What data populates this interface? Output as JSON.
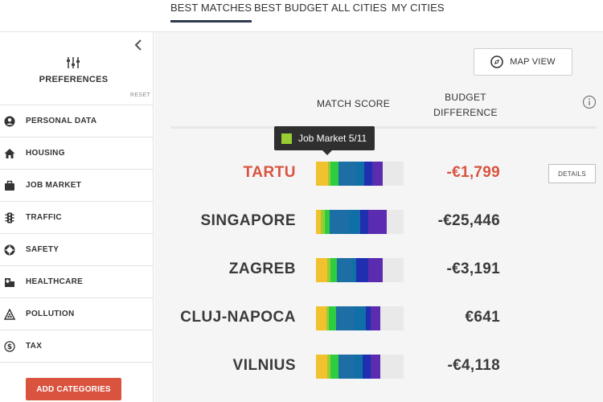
{
  "tabs": [
    {
      "label": "BEST MATCHES",
      "active": true
    },
    {
      "label": "BEST BUDGET",
      "active": false
    },
    {
      "label": "ALL CITIES",
      "active": false
    },
    {
      "label": "MY CITIES",
      "active": false
    }
  ],
  "sidebar": {
    "title": "PREFERENCES",
    "reset_label": "RESET",
    "categories": [
      {
        "label": "PERSONAL DATA",
        "icon": "person-icon"
      },
      {
        "label": "HOUSING",
        "icon": "house-icon"
      },
      {
        "label": "JOB MARKET",
        "icon": "briefcase-icon"
      },
      {
        "label": "TRAFFIC",
        "icon": "traffic-light-icon"
      },
      {
        "label": "SAFETY",
        "icon": "lifebuoy-icon"
      },
      {
        "label": "HEALTHCARE",
        "icon": "hospital-icon"
      },
      {
        "label": "POLLUTION",
        "icon": "pollution-icon"
      },
      {
        "label": "TAX",
        "icon": "dollar-coin-icon"
      }
    ],
    "add_button_label": "ADD CATEGORIES"
  },
  "main": {
    "map_button_label": "MAP VIEW",
    "col_match": "MATCH SCORE",
    "col_budget_line1": "BUDGET",
    "col_budget_line2": "DIFFERENCE",
    "details_label": "DETAILS",
    "tooltip": {
      "text": "Job Market 5/11",
      "color": "#9acd32"
    },
    "colors": {
      "accent": "#d9533f",
      "segments": [
        "#f2c12e",
        "#9acd32",
        "#2ecc40",
        "#1c6ea4",
        "#116fa8",
        "#1f2fb0",
        "#5b2bb0",
        "#8e1db5"
      ]
    },
    "cities": [
      {
        "name": "TARTU",
        "budget": "-€1,799",
        "highlight": true,
        "segments": [
          15,
          3,
          10,
          22,
          10,
          10,
          13,
          0
        ]
      },
      {
        "name": "SINGAPORE",
        "budget": "-€25,446",
        "highlight": false,
        "segments": [
          6,
          5,
          6,
          24,
          14,
          10,
          23,
          0
        ]
      },
      {
        "name": "ZAGREB",
        "budget": "-€3,191",
        "highlight": false,
        "segments": [
          14,
          4,
          8,
          20,
          4,
          15,
          18,
          0
        ]
      },
      {
        "name": "CLUJ-NAPOCA",
        "budget": "€641",
        "highlight": false,
        "segments": [
          13,
          3,
          9,
          23,
          14,
          6,
          12,
          0
        ]
      },
      {
        "name": "VILNIUS",
        "budget": "-€4,118",
        "highlight": false,
        "segments": [
          14,
          4,
          10,
          20,
          10,
          10,
          12,
          0
        ]
      }
    ]
  }
}
